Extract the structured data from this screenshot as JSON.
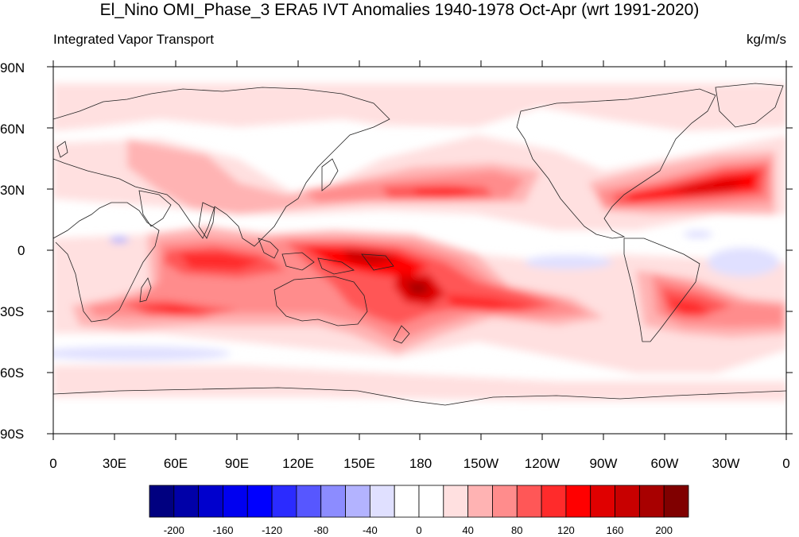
{
  "title": "El_Nino OMI_Phase_3 ERA5 IVT Anomalies 1940-1978 Oct-Apr (wrt 1991-2020)",
  "subtitle_left": "Integrated Vapor Transport",
  "subtitle_right": "kg/m/s",
  "lat_labels": [
    "90N",
    "60N",
    "30N",
    "0",
    "30S",
    "60S",
    "90S"
  ],
  "lon_labels": [
    "0",
    "30E",
    "60E",
    "90E",
    "120E",
    "150E",
    "180",
    "150W",
    "120W",
    "90W",
    "60W",
    "30W",
    "0"
  ],
  "colorbar": {
    "colors": [
      "#000080",
      "#0000a8",
      "#0000cd",
      "#0000f0",
      "#0000ff",
      "#2b2bff",
      "#5757ff",
      "#8c8cff",
      "#b3b3ff",
      "#e0e0ff",
      "#ffffff",
      "#ffffff",
      "#ffe0e0",
      "#ffb3b3",
      "#ff8c8c",
      "#ff5757",
      "#ff2b2b",
      "#ff0000",
      "#e00000",
      "#c80000",
      "#a80000",
      "#800000"
    ],
    "tick_labels": [
      "-200",
      "-160",
      "-120",
      "-80",
      "-40",
      "0",
      "40",
      "80",
      "120",
      "160",
      "200"
    ]
  },
  "legend_levels": [
    -200,
    -180,
    -160,
    -140,
    -120,
    -100,
    -80,
    -60,
    -40,
    -20,
    0,
    20,
    40,
    60,
    80,
    100,
    120,
    140,
    160,
    180,
    200
  ]
}
